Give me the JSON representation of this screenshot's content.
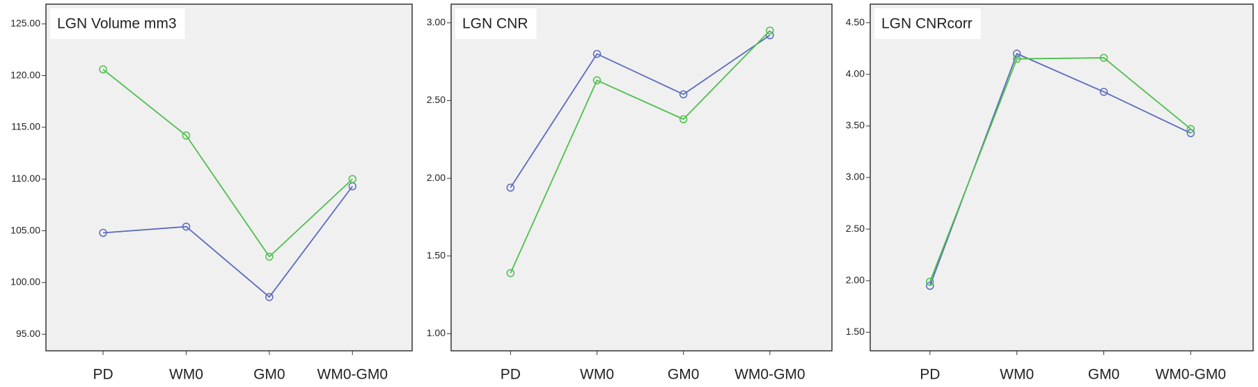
{
  "chart_data": [
    {
      "type": "line",
      "title": "LGN Volume mm3",
      "categories": [
        "PD",
        "WM0",
        "GM0",
        "WM0-GM0"
      ],
      "series": [
        {
          "color": "#5a6abf",
          "values": [
            104.8,
            105.4,
            98.6,
            109.3
          ]
        },
        {
          "color": "#4dbf4d",
          "values": [
            120.6,
            114.2,
            102.5,
            110.0
          ]
        }
      ],
      "ylim": [
        93.4,
        126.9
      ],
      "yticks": [
        {
          "value": 95,
          "label": "95.00"
        },
        {
          "value": 100,
          "label": "100.00"
        },
        {
          "value": 105,
          "label": "105.00"
        },
        {
          "value": 110,
          "label": "110.00"
        },
        {
          "value": 115,
          "label": "115.00"
        },
        {
          "value": 120,
          "label": "120.00"
        },
        {
          "value": 125,
          "label": "125.00"
        }
      ]
    },
    {
      "type": "line",
      "title": "LGN CNR",
      "categories": [
        "PD",
        "WM0",
        "GM0",
        "WM0-GM0"
      ],
      "series": [
        {
          "color": "#5a6abf",
          "values": [
            1.94,
            2.8,
            2.54,
            2.92
          ]
        },
        {
          "color": "#4dbf4d",
          "values": [
            1.39,
            2.63,
            2.38,
            2.95
          ]
        }
      ],
      "ylim": [
        0.89,
        3.12
      ],
      "yticks": [
        {
          "value": 1,
          "label": "1.00"
        },
        {
          "value": 1.5,
          "label": "1.50"
        },
        {
          "value": 2,
          "label": "2.00"
        },
        {
          "value": 2.5,
          "label": "2.50"
        },
        {
          "value": 3,
          "label": "3.00"
        }
      ]
    },
    {
      "type": "line",
      "title": "LGN CNRcorr",
      "categories": [
        "PD",
        "WM0",
        "GM0",
        "WM0-GM0"
      ],
      "series": [
        {
          "color": "#5a6abf",
          "values": [
            1.95,
            4.2,
            3.83,
            3.43
          ]
        },
        {
          "color": "#4dbf4d",
          "values": [
            1.99,
            4.15,
            4.16,
            3.47
          ]
        }
      ],
      "ylim": [
        1.32,
        4.68
      ],
      "yticks": [
        {
          "value": 1.5,
          "label": "1.50"
        },
        {
          "value": 2,
          "label": "2.00"
        },
        {
          "value": 2.5,
          "label": "2.50"
        },
        {
          "value": 3,
          "label": "3.00"
        },
        {
          "value": 3.5,
          "label": "3.50"
        },
        {
          "value": 4,
          "label": "4.00"
        },
        {
          "value": 4.5,
          "label": "4.50"
        }
      ]
    }
  ]
}
